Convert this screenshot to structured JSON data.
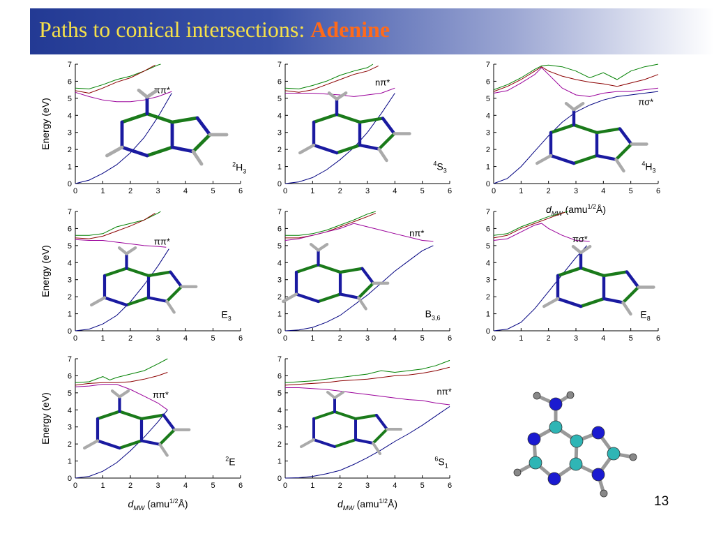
{
  "slide": {
    "title_main": "Paths to conical intersections: ",
    "title_accent": "Adenine",
    "page_number": "13",
    "xlabel_var": "d",
    "xlabel_sub": "MW",
    "xlabel_unit_pre": " (amu",
    "xlabel_unit_sup": "1/2",
    "xlabel_unit_post": "Å)",
    "ylabel": "Energy (eV)"
  },
  "chart_data": [
    {
      "type": "line",
      "panel": "2H3",
      "state_label": "ππ*",
      "point_label_sup": "2",
      "point_label_main": "H",
      "point_label_sub": "3",
      "xlim": [
        0,
        6
      ],
      "ylim": [
        0,
        7
      ],
      "xticks": [
        "0",
        "1",
        "2",
        "3",
        "4",
        "5",
        "6"
      ],
      "yticks": [
        "0",
        "1",
        "2",
        "3",
        "4",
        "5",
        "6",
        "7"
      ],
      "series": [
        {
          "color": "#008000",
          "x": [
            0,
            0.5,
            1,
            1.5,
            2,
            2.5,
            3,
            3.1
          ],
          "y": [
            5.6,
            5.55,
            5.8,
            6.1,
            6.3,
            6.6,
            6.95,
            7.0
          ]
        },
        {
          "color": "#8b0000",
          "x": [
            0,
            0.5,
            1,
            1.5,
            2,
            2.5,
            2.9
          ],
          "y": [
            5.45,
            5.3,
            5.6,
            5.95,
            6.2,
            6.6,
            6.95
          ]
        },
        {
          "color": "#9a009a",
          "x": [
            0,
            0.5,
            1,
            1.5,
            2,
            2.5,
            3,
            3.5
          ],
          "y": [
            5.35,
            5.1,
            4.9,
            4.8,
            4.8,
            4.9,
            5.1,
            5.4
          ]
        },
        {
          "color": "#000080",
          "x": [
            0,
            0.5,
            1,
            1.5,
            2,
            2.5,
            3,
            3.5
          ],
          "y": [
            0,
            0.2,
            0.6,
            1.1,
            1.8,
            2.7,
            3.9,
            5.3
          ]
        }
      ]
    },
    {
      "type": "line",
      "panel": "4S3",
      "state_label": "nπ*",
      "point_label_sup": "4",
      "point_label_main": "S",
      "point_label_sub": "3",
      "xlim": [
        0,
        6
      ],
      "ylim": [
        0,
        7
      ],
      "xticks": [
        "0",
        "1",
        "2",
        "3",
        "4",
        "5",
        "6"
      ],
      "yticks": [
        "0",
        "1",
        "2",
        "3",
        "4",
        "5",
        "6",
        "7"
      ],
      "series": [
        {
          "color": "#008000",
          "x": [
            0,
            0.5,
            1,
            1.5,
            2,
            2.5,
            3,
            3.2
          ],
          "y": [
            5.6,
            5.55,
            5.75,
            6.0,
            6.35,
            6.6,
            6.8,
            7.0
          ]
        },
        {
          "color": "#8b0000",
          "x": [
            0,
            0.5,
            1,
            1.5,
            2,
            2.5,
            3,
            3.4
          ],
          "y": [
            5.45,
            5.35,
            5.5,
            5.8,
            6.1,
            6.4,
            6.6,
            6.9
          ]
        },
        {
          "color": "#9a009a",
          "x": [
            0,
            0.5,
            1,
            1.5,
            2,
            2.5,
            3,
            3.5,
            4
          ],
          "y": [
            5.3,
            5.3,
            5.3,
            5.25,
            5.2,
            5.1,
            5.2,
            5.3,
            5.6
          ]
        },
        {
          "color": "#000080",
          "x": [
            0,
            0.5,
            1,
            1.5,
            2,
            2.5,
            3,
            3.5,
            4
          ],
          "y": [
            0,
            0.1,
            0.35,
            0.8,
            1.4,
            2.1,
            3.0,
            4.1,
            5.3
          ]
        }
      ]
    },
    {
      "type": "line",
      "panel": "4H3",
      "state_label": "πσ*",
      "point_label_sup": "4",
      "point_label_main": "H",
      "point_label_sub": "3",
      "xlim": [
        0,
        6
      ],
      "ylim": [
        0,
        7
      ],
      "xticks": [
        "0",
        "1",
        "2",
        "3",
        "4",
        "5",
        "6"
      ],
      "yticks": [
        "0",
        "1",
        "2",
        "3",
        "4",
        "5",
        "6",
        "7"
      ],
      "series": [
        {
          "color": "#008000",
          "x": [
            0,
            0.5,
            1,
            1.5,
            1.75,
            2,
            2.5,
            3,
            3.5,
            4,
            4.5,
            5,
            5.5,
            6
          ],
          "y": [
            5.5,
            5.8,
            6.2,
            6.7,
            6.9,
            6.95,
            6.85,
            6.6,
            6.2,
            6.5,
            6.1,
            6.6,
            6.85,
            7.0
          ]
        },
        {
          "color": "#8b0000",
          "x": [
            0,
            0.5,
            1,
            1.5,
            1.75,
            2,
            2.5,
            3,
            3.5,
            4,
            4.5,
            5,
            5.5,
            6
          ],
          "y": [
            5.4,
            5.7,
            6.1,
            6.6,
            6.85,
            6.6,
            6.3,
            6.1,
            5.95,
            5.85,
            5.7,
            5.9,
            6.1,
            6.4
          ]
        },
        {
          "color": "#9a009a",
          "x": [
            0,
            0.5,
            1,
            1.5,
            1.75,
            2,
            2.5,
            3,
            3.5,
            4,
            4.5,
            5,
            5.5,
            6
          ],
          "y": [
            5.3,
            5.45,
            5.9,
            6.4,
            6.8,
            6.4,
            5.6,
            5.2,
            5.1,
            5.3,
            5.4,
            5.4,
            5.5,
            5.6
          ]
        },
        {
          "color": "#000080",
          "x": [
            0,
            0.5,
            1,
            1.5,
            2,
            2.5,
            3,
            3.5,
            4,
            4.5,
            5,
            5.5,
            6
          ],
          "y": [
            0,
            0.3,
            1.0,
            1.9,
            2.8,
            3.6,
            4.2,
            4.6,
            4.9,
            5.1,
            5.2,
            5.3,
            5.4
          ]
        }
      ]
    },
    {
      "type": "line",
      "panel": "E3",
      "state_label": "ππ*",
      "point_label_sup": "",
      "point_label_main": "E",
      "point_label_sub": "3",
      "xlim": [
        0,
        6
      ],
      "ylim": [
        0,
        7
      ],
      "xticks": [
        "0",
        "1",
        "2",
        "3",
        "4",
        "5",
        "6"
      ],
      "yticks": [
        "0",
        "1",
        "2",
        "3",
        "4",
        "5",
        "6",
        "7"
      ],
      "series": [
        {
          "color": "#008000",
          "x": [
            0,
            0.5,
            1,
            1.5,
            2,
            2.5,
            3,
            3.1
          ],
          "y": [
            5.6,
            5.6,
            5.7,
            6.1,
            6.3,
            6.5,
            6.9,
            7.0
          ]
        },
        {
          "color": "#8b0000",
          "x": [
            0,
            0.5,
            1,
            1.5,
            2,
            2.5,
            2.9
          ],
          "y": [
            5.45,
            5.4,
            5.55,
            5.85,
            6.15,
            6.5,
            6.9
          ]
        },
        {
          "color": "#9a009a",
          "x": [
            0,
            0.5,
            1,
            1.5,
            2,
            2.5,
            3,
            3.3
          ],
          "y": [
            5.35,
            5.3,
            5.3,
            5.2,
            5.1,
            5.0,
            4.95,
            4.9
          ]
        },
        {
          "color": "#000080",
          "x": [
            0,
            0.5,
            1,
            1.5,
            2,
            2.5,
            3,
            3.4
          ],
          "y": [
            0,
            0.1,
            0.4,
            0.9,
            1.7,
            2.7,
            3.8,
            4.8
          ]
        }
      ]
    },
    {
      "type": "line",
      "panel": "B36",
      "state_label": "nπ*",
      "point_label_sup": "",
      "point_label_main": "B",
      "point_label_sub": "3,6",
      "xlim": [
        0,
        6
      ],
      "ylim": [
        0,
        7
      ],
      "xticks": [
        "0",
        "1",
        "2",
        "3",
        "4",
        "5",
        "6"
      ],
      "yticks": [
        "0",
        "1",
        "2",
        "3",
        "4",
        "5",
        "6",
        "7"
      ],
      "series": [
        {
          "color": "#008000",
          "x": [
            0,
            0.5,
            1,
            1.5,
            2,
            2.5,
            3,
            3.3
          ],
          "y": [
            5.6,
            5.6,
            5.7,
            5.9,
            6.2,
            6.5,
            6.85,
            7.0
          ]
        },
        {
          "color": "#8b0000",
          "x": [
            0,
            0.5,
            1,
            1.5,
            2,
            2.5,
            3,
            3.3
          ],
          "y": [
            5.45,
            5.45,
            5.6,
            5.8,
            6.1,
            6.4,
            6.7,
            6.9
          ]
        },
        {
          "color": "#9a009a",
          "x": [
            0,
            0.5,
            1,
            1.5,
            2,
            2.5,
            3,
            3.5,
            4,
            4.5,
            5,
            5.4
          ],
          "y": [
            5.3,
            5.4,
            5.6,
            5.8,
            6.0,
            6.3,
            6.1,
            5.9,
            5.7,
            5.5,
            5.3,
            5.25
          ]
        },
        {
          "color": "#000080",
          "x": [
            0,
            0.5,
            1,
            1.5,
            2,
            2.5,
            3,
            3.5,
            4,
            4.5,
            5,
            5.4
          ],
          "y": [
            0,
            0.05,
            0.2,
            0.5,
            0.9,
            1.5,
            2.1,
            2.8,
            3.5,
            4.1,
            4.7,
            5.0
          ]
        }
      ]
    },
    {
      "type": "line",
      "panel": "E8",
      "state_label": "πσ*",
      "point_label_sup": "",
      "point_label_main": "E",
      "point_label_sub": "8",
      "xlim": [
        0,
        6
      ],
      "ylim": [
        0,
        7
      ],
      "xticks": [
        "0",
        "1",
        "2",
        "3",
        "4",
        "5",
        "6"
      ],
      "yticks": [
        "0",
        "1",
        "2",
        "3",
        "4",
        "5",
        "6",
        "7"
      ],
      "series": [
        {
          "color": "#008000",
          "x": [
            0,
            0.5,
            1,
            1.5,
            2,
            2.5,
            2.7
          ],
          "y": [
            5.6,
            5.7,
            6.1,
            6.4,
            6.7,
            6.9,
            7.0
          ]
        },
        {
          "color": "#8b0000",
          "x": [
            0,
            0.5,
            1,
            1.5,
            2,
            2.5,
            2.6
          ],
          "y": [
            5.45,
            5.6,
            6.0,
            6.3,
            6.6,
            6.9,
            6.95
          ]
        },
        {
          "color": "#9a009a",
          "x": [
            0,
            0.5,
            1,
            1.5,
            1.75,
            2,
            2.5,
            3,
            3.5
          ],
          "y": [
            5.3,
            5.4,
            5.8,
            6.2,
            6.3,
            6.0,
            5.6,
            5.3,
            5.25
          ]
        },
        {
          "color": "#000080",
          "x": [
            0,
            0.5,
            1,
            1.5,
            2,
            2.5,
            3,
            3.4
          ],
          "y": [
            0,
            0.1,
            0.5,
            1.3,
            2.3,
            3.3,
            4.3,
            5.0
          ]
        }
      ]
    },
    {
      "type": "line",
      "panel": "2E",
      "state_label": "ππ*",
      "point_label_sup": "2",
      "point_label_main": "E",
      "point_label_sub": "",
      "xlim": [
        0,
        6
      ],
      "ylim": [
        0,
        7
      ],
      "xticks": [
        "0",
        "1",
        "2",
        "3",
        "4",
        "5",
        "6"
      ],
      "yticks": [
        "0",
        "1",
        "2",
        "3",
        "4",
        "5",
        "6",
        "7"
      ],
      "series": [
        {
          "color": "#008000",
          "x": [
            0,
            0.5,
            1,
            1.25,
            1.5,
            2,
            2.5,
            3,
            3.35
          ],
          "y": [
            5.6,
            5.65,
            5.95,
            5.75,
            5.9,
            6.1,
            6.3,
            6.7,
            7.0
          ]
        },
        {
          "color": "#8b0000",
          "x": [
            0,
            0.5,
            1,
            1.5,
            2,
            2.5,
            3,
            3.35
          ],
          "y": [
            5.45,
            5.55,
            5.6,
            5.6,
            5.65,
            5.8,
            6.0,
            6.2
          ]
        },
        {
          "color": "#9a009a",
          "x": [
            0,
            0.5,
            1,
            1.5,
            2,
            2.5,
            3,
            3.35
          ],
          "y": [
            5.35,
            5.4,
            5.5,
            5.5,
            5.2,
            4.8,
            4.4,
            4.0
          ]
        },
        {
          "color": "#000080",
          "x": [
            0,
            0.5,
            1,
            1.5,
            2,
            2.5,
            3,
            3.35
          ],
          "y": [
            0,
            0.1,
            0.4,
            0.9,
            1.6,
            2.4,
            3.3,
            4.0
          ]
        }
      ]
    },
    {
      "type": "line",
      "panel": "6S1",
      "state_label": "nπ*",
      "point_label_sup": "6",
      "point_label_main": "S",
      "point_label_sub": "1",
      "xlim": [
        0,
        6
      ],
      "ylim": [
        0,
        7
      ],
      "xticks": [
        "0",
        "1",
        "2",
        "3",
        "4",
        "5",
        "6"
      ],
      "yticks": [
        "0",
        "1",
        "2",
        "3",
        "4",
        "5",
        "6",
        "7"
      ],
      "series": [
        {
          "color": "#008000",
          "x": [
            0,
            0.5,
            1,
            1.5,
            2,
            2.5,
            3,
            3.5,
            4,
            4.5,
            5,
            5.5,
            6
          ],
          "y": [
            5.6,
            5.65,
            5.7,
            5.8,
            5.9,
            6.0,
            6.1,
            6.3,
            6.2,
            6.3,
            6.4,
            6.6,
            6.9
          ]
        },
        {
          "color": "#8b0000",
          "x": [
            0,
            0.5,
            1,
            1.5,
            2,
            2.5,
            3,
            3.5,
            4,
            4.5,
            5,
            5.5,
            6
          ],
          "y": [
            5.45,
            5.5,
            5.55,
            5.6,
            5.7,
            5.75,
            5.8,
            5.9,
            6.0,
            6.05,
            6.15,
            6.3,
            6.5
          ]
        },
        {
          "color": "#9a009a",
          "x": [
            0,
            0.5,
            1,
            1.5,
            2,
            2.5,
            3,
            3.5,
            4,
            4.5,
            5,
            5.5,
            6
          ],
          "y": [
            5.3,
            5.3,
            5.25,
            5.2,
            5.1,
            5.0,
            4.9,
            4.8,
            4.7,
            4.6,
            4.55,
            4.4,
            4.3
          ]
        },
        {
          "color": "#000080",
          "x": [
            0,
            0.5,
            1,
            1.5,
            2,
            2.5,
            3,
            3.5,
            4,
            4.5,
            5,
            5.5,
            6
          ],
          "y": [
            0,
            0.02,
            0.1,
            0.25,
            0.45,
            0.8,
            1.2,
            1.65,
            2.15,
            2.6,
            3.1,
            3.65,
            4.2
          ]
        }
      ]
    }
  ]
}
